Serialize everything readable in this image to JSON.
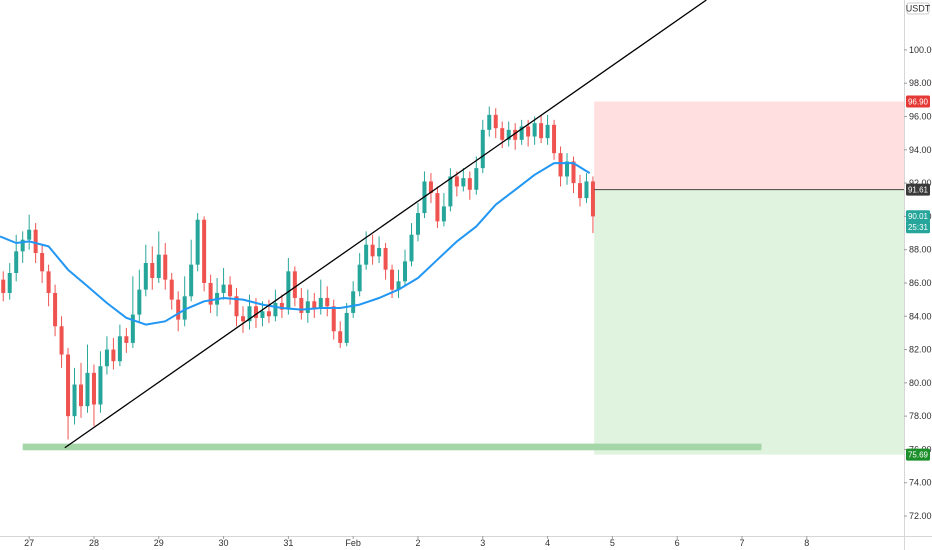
{
  "chart_data": {
    "type": "candlestick",
    "currency": "USDT",
    "y_range": [
      70.8,
      103.0
    ],
    "x_range": [
      26.55,
      40.5
    ],
    "y_ticks": [
      "100.00",
      "98.00",
      "96.00",
      "94.00",
      "92.00",
      "90.00",
      "88.00",
      "86.00",
      "84.00",
      "82.00",
      "80.00",
      "78.00",
      "76.00",
      "74.00",
      "72.00"
    ],
    "y_tick_values": [
      100,
      98,
      96,
      94,
      92,
      90,
      88,
      86,
      84,
      82,
      80,
      78,
      76,
      74,
      72
    ],
    "x_ticks": [
      {
        "label": "27",
        "x": 27
      },
      {
        "label": "28",
        "x": 28
      },
      {
        "label": "29",
        "x": 29
      },
      {
        "label": "30",
        "x": 30
      },
      {
        "label": "31",
        "x": 31
      },
      {
        "label": "Feb",
        "x": 32
      },
      {
        "label": "2",
        "x": 33
      },
      {
        "label": "3",
        "x": 34
      },
      {
        "label": "4",
        "x": 35
      },
      {
        "label": "5",
        "x": 36
      },
      {
        "label": "6",
        "x": 37
      },
      {
        "label": "7",
        "x": 38
      },
      {
        "label": "8",
        "x": 39
      }
    ],
    "price_tags": [
      {
        "label": "96.90",
        "value": 96.9,
        "color": "#e53935"
      },
      {
        "label": "91.61",
        "value": 91.61,
        "color": "#3a3a3a"
      },
      {
        "label": "90.01",
        "value": 90.01,
        "color": "#26a69a"
      },
      {
        "label": "25:31",
        "value": 89.35,
        "color": "#26a69a"
      },
      {
        "label": "75.69",
        "value": 75.69,
        "color": "#1b8f2a"
      }
    ],
    "colors": {
      "up": "#26a69a",
      "down": "#ef5350",
      "ma": "#2196f3",
      "trendline": "#000000",
      "stop_zone": "#ffdfe0",
      "target_zone": "#dff3df",
      "support_band": "#a5d6a7"
    },
    "trendline": {
      "from": [
        27.55,
        76.1
      ],
      "to": [
        37.45,
        103.0
      ]
    },
    "support_band": {
      "x": [
        26.9,
        38.3
      ],
      "y": [
        75.95,
        76.35
      ]
    },
    "position": {
      "x_start": 35.72,
      "x_end": 40.5,
      "entry": 91.61,
      "stop": 96.9,
      "target": 75.69
    },
    "ma_points": [
      [
        26.55,
        88.8
      ],
      [
        26.8,
        88.4
      ],
      [
        27.0,
        88.5
      ],
      [
        27.3,
        88.2
      ],
      [
        27.6,
        86.8
      ],
      [
        27.9,
        85.8
      ],
      [
        28.2,
        84.8
      ],
      [
        28.5,
        83.9
      ],
      [
        28.8,
        83.5
      ],
      [
        29.1,
        83.7
      ],
      [
        29.4,
        84.4
      ],
      [
        29.7,
        84.9
      ],
      [
        30.0,
        85.1
      ],
      [
        30.3,
        85.0
      ],
      [
        30.6,
        84.7
      ],
      [
        30.9,
        84.5
      ],
      [
        31.2,
        84.4
      ],
      [
        31.5,
        84.5
      ],
      [
        31.8,
        84.5
      ],
      [
        32.1,
        84.7
      ],
      [
        32.4,
        85.1
      ],
      [
        32.7,
        85.6
      ],
      [
        33.0,
        86.3
      ],
      [
        33.3,
        87.4
      ],
      [
        33.6,
        88.5
      ],
      [
        33.9,
        89.4
      ],
      [
        34.2,
        90.7
      ],
      [
        34.5,
        91.6
      ],
      [
        34.8,
        92.5
      ],
      [
        35.1,
        93.2
      ],
      [
        35.4,
        93.2
      ],
      [
        35.65,
        92.6
      ]
    ],
    "candles": [
      [
        26.6,
        86.2,
        85.4,
        86.7,
        84.9
      ],
      [
        26.7,
        85.4,
        86.6,
        87.2,
        85.0
      ],
      [
        26.8,
        86.6,
        87.9,
        88.9,
        86.1
      ],
      [
        26.9,
        87.9,
        88.6,
        89.1,
        87.2
      ],
      [
        27.0,
        88.6,
        89.2,
        90.1,
        88.0
      ],
      [
        27.1,
        89.2,
        87.8,
        89.6,
        87.2
      ],
      [
        27.2,
        87.8,
        86.7,
        88.3,
        86.0
      ],
      [
        27.3,
        86.7,
        85.4,
        87.1,
        84.6
      ],
      [
        27.4,
        85.4,
        83.4,
        85.9,
        82.8
      ],
      [
        27.5,
        83.4,
        81.7,
        84.0,
        80.9
      ],
      [
        27.6,
        81.7,
        78.0,
        82.1,
        76.6
      ],
      [
        27.7,
        78.0,
        79.9,
        80.9,
        77.5
      ],
      [
        27.8,
        79.9,
        78.6,
        81.2,
        77.9
      ],
      [
        27.9,
        78.6,
        80.6,
        82.3,
        78.2
      ],
      [
        28.0,
        80.6,
        78.7,
        81.1,
        77.4
      ],
      [
        28.1,
        78.7,
        81.0,
        81.9,
        78.2
      ],
      [
        28.2,
        81.0,
        82.0,
        82.8,
        80.5
      ],
      [
        28.3,
        82.0,
        81.3,
        82.7,
        80.8
      ],
      [
        28.4,
        81.3,
        82.8,
        83.5,
        81.0
      ],
      [
        28.5,
        82.8,
        82.4,
        83.3,
        81.8
      ],
      [
        28.6,
        82.4,
        84.1,
        86.4,
        82.1
      ],
      [
        28.7,
        84.1,
        85.6,
        86.8,
        83.6
      ],
      [
        28.8,
        85.6,
        87.2,
        88.3,
        85.2
      ],
      [
        28.9,
        87.2,
        86.3,
        88.2,
        85.6
      ],
      [
        29.0,
        86.3,
        87.7,
        89.1,
        86.0
      ],
      [
        29.1,
        87.7,
        86.2,
        88.4,
        85.6
      ],
      [
        29.2,
        86.2,
        85.0,
        86.6,
        84.4
      ],
      [
        29.3,
        85.0,
        83.8,
        85.5,
        83.1
      ],
      [
        29.4,
        83.8,
        85.2,
        86.4,
        83.4
      ],
      [
        29.5,
        85.2,
        87.1,
        88.6,
        84.9
      ],
      [
        29.6,
        87.1,
        89.8,
        90.2,
        86.7
      ],
      [
        29.7,
        89.8,
        86.0,
        90.0,
        85.5
      ],
      [
        29.8,
        86.0,
        84.7,
        86.5,
        84.2
      ],
      [
        29.9,
        84.7,
        85.4,
        86.3,
        84.0
      ],
      [
        30.0,
        85.4,
        85.9,
        86.9,
        85.0
      ],
      [
        30.1,
        85.9,
        85.2,
        86.4,
        84.7
      ],
      [
        30.2,
        85.2,
        84.0,
        85.7,
        83.4
      ],
      [
        30.3,
        84.0,
        83.7,
        84.6,
        83.0
      ],
      [
        30.4,
        83.7,
        84.6,
        85.3,
        83.2
      ],
      [
        30.5,
        84.6,
        83.9,
        85.1,
        83.3
      ],
      [
        30.6,
        83.9,
        84.3,
        84.9,
        83.4
      ],
      [
        30.7,
        84.3,
        84.0,
        85.0,
        83.6
      ],
      [
        30.8,
        84.0,
        84.8,
        85.6,
        83.7
      ],
      [
        30.9,
        84.8,
        84.4,
        85.3,
        83.9
      ],
      [
        31.0,
        84.4,
        86.7,
        87.5,
        84.1
      ],
      [
        31.1,
        86.7,
        85.1,
        87.0,
        84.6
      ],
      [
        31.2,
        85.1,
        84.2,
        85.7,
        83.8
      ],
      [
        31.3,
        84.2,
        84.9,
        85.6,
        83.6
      ],
      [
        31.4,
        84.9,
        84.5,
        85.4,
        83.9
      ],
      [
        31.5,
        84.5,
        85.1,
        86.2,
        84.1
      ],
      [
        31.6,
        85.1,
        84.6,
        85.8,
        84.0
      ],
      [
        31.7,
        84.6,
        83.1,
        85.0,
        82.6
      ],
      [
        31.8,
        83.1,
        82.4,
        83.7,
        82.1
      ],
      [
        31.9,
        82.4,
        84.2,
        84.8,
        82.2
      ],
      [
        32.0,
        84.2,
        85.5,
        86.1,
        83.9
      ],
      [
        32.1,
        85.5,
        87.1,
        87.8,
        85.2
      ],
      [
        32.2,
        87.1,
        88.3,
        89.1,
        86.8
      ],
      [
        32.3,
        88.3,
        87.6,
        88.9,
        87.1
      ],
      [
        32.4,
        87.6,
        88.1,
        88.8,
        87.2
      ],
      [
        32.5,
        88.1,
        86.8,
        88.4,
        86.2
      ],
      [
        32.6,
        86.8,
        85.6,
        87.1,
        85.1
      ],
      [
        32.7,
        85.6,
        86.1,
        86.8,
        85.1
      ],
      [
        32.8,
        86.1,
        87.3,
        88.0,
        85.8
      ],
      [
        32.9,
        87.3,
        88.9,
        89.6,
        87.0
      ],
      [
        33.0,
        88.9,
        90.2,
        90.8,
        88.5
      ],
      [
        33.1,
        90.2,
        92.1,
        92.7,
        89.9
      ],
      [
        33.2,
        92.1,
        91.4,
        92.6,
        90.8
      ],
      [
        33.3,
        91.4,
        89.7,
        91.8,
        89.3
      ],
      [
        33.4,
        89.7,
        90.6,
        91.4,
        89.4
      ],
      [
        33.5,
        90.6,
        92.4,
        92.9,
        90.3
      ],
      [
        33.6,
        92.4,
        91.8,
        92.7,
        91.2
      ],
      [
        33.7,
        91.8,
        92.3,
        92.9,
        91.5
      ],
      [
        33.8,
        92.3,
        91.6,
        92.7,
        91.0
      ],
      [
        33.9,
        91.6,
        92.9,
        93.6,
        91.3
      ],
      [
        34.0,
        92.9,
        95.2,
        95.8,
        92.6
      ],
      [
        34.1,
        95.2,
        96.1,
        96.6,
        94.8
      ],
      [
        34.2,
        96.1,
        95.3,
        96.5,
        94.7
      ],
      [
        34.3,
        95.3,
        94.6,
        95.7,
        94.1
      ],
      [
        34.4,
        94.6,
        95.2,
        95.7,
        94.2
      ],
      [
        34.5,
        95.2,
        94.6,
        95.6,
        94.0
      ],
      [
        34.6,
        94.6,
        95.4,
        95.8,
        94.3
      ],
      [
        34.7,
        95.4,
        94.8,
        95.8,
        94.2
      ],
      [
        34.8,
        94.8,
        95.6,
        96.0,
        94.3
      ],
      [
        34.9,
        95.6,
        94.7,
        96.1,
        94.4
      ],
      [
        35.0,
        94.7,
        95.5,
        96.1,
        94.3
      ],
      [
        35.1,
        95.5,
        93.8,
        95.8,
        93.4
      ],
      [
        35.2,
        93.8,
        92.4,
        94.2,
        91.8
      ],
      [
        35.3,
        92.4,
        93.3,
        93.8,
        91.9
      ],
      [
        35.4,
        93.3,
        92.0,
        93.6,
        91.4
      ],
      [
        35.5,
        92.0,
        91.1,
        92.5,
        90.6
      ],
      [
        35.6,
        91.1,
        92.1,
        92.6,
        90.8
      ],
      [
        35.7,
        92.1,
        90.0,
        92.4,
        89.0
      ]
    ]
  }
}
